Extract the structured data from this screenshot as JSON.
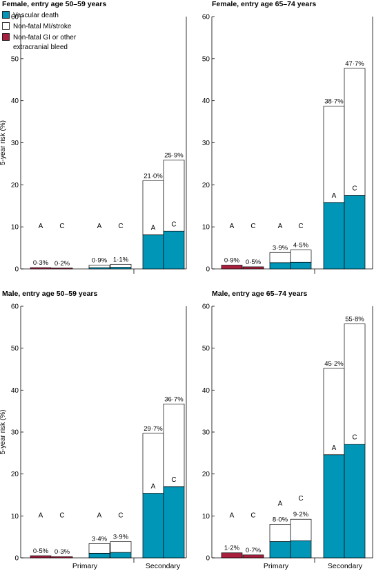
{
  "legend": {
    "vascular": "Vascular death",
    "nonfatal": "Non-fatal MI/stroke",
    "bleed_line1": "Non-fatal GI or other",
    "bleed_line2": "extracranial bleed"
  },
  "group_labels": [
    "Primary",
    "Secondary"
  ],
  "y_axis_label": "5-year risk (%)",
  "colors": {
    "vascular": "#0096b8",
    "nonfatal": "#ffffff",
    "bleed": "#a8203e",
    "axis": "#000000"
  },
  "chart_data": [
    {
      "type": "bar",
      "stacked": true,
      "title": "Female, entry age 50–59 years",
      "ylabel": "5-year risk (%)",
      "ylim": [
        0,
        60
      ],
      "yticks": [
        0,
        10,
        20,
        30,
        40,
        50,
        60
      ],
      "groups": [
        "Primary",
        "Secondary"
      ],
      "bars": [
        {
          "group": "Primary",
          "subgroup": 1,
          "letter": "A",
          "label": "0·3%",
          "bleed": 0.3,
          "vascular": 0,
          "nonfatal": 0
        },
        {
          "group": "Primary",
          "subgroup": 1,
          "letter": "C",
          "label": "0·2%",
          "bleed": 0.2,
          "vascular": 0,
          "nonfatal": 0
        },
        {
          "group": "Primary",
          "subgroup": 2,
          "letter": "A",
          "label": "0·9%",
          "bleed": 0,
          "vascular": 0.3,
          "nonfatal": 0.6
        },
        {
          "group": "Primary",
          "subgroup": 2,
          "letter": "C",
          "label": "1·1%",
          "bleed": 0,
          "vascular": 0.4,
          "nonfatal": 0.7
        },
        {
          "group": "Secondary",
          "subgroup": 3,
          "letter": "A",
          "label": "21·0%",
          "bleed": 0,
          "vascular": 8.1,
          "nonfatal": 12.9
        },
        {
          "group": "Secondary",
          "subgroup": 3,
          "letter": "C",
          "label": "25·9%",
          "bleed": 0,
          "vascular": 9.0,
          "nonfatal": 16.9
        }
      ]
    },
    {
      "type": "bar",
      "stacked": true,
      "title": "Female, entry age 65–74 years",
      "ylabel": "",
      "ylim": [
        0,
        60
      ],
      "yticks": [
        0,
        10,
        20,
        30,
        40,
        50,
        60
      ],
      "groups": [
        "Primary",
        "Secondary"
      ],
      "bars": [
        {
          "group": "Primary",
          "subgroup": 1,
          "letter": "A",
          "label": "0·9%",
          "bleed": 0.9,
          "vascular": 0,
          "nonfatal": 0
        },
        {
          "group": "Primary",
          "subgroup": 1,
          "letter": "C",
          "label": "0·5%",
          "bleed": 0.5,
          "vascular": 0,
          "nonfatal": 0
        },
        {
          "group": "Primary",
          "subgroup": 2,
          "letter": "A",
          "label": "3·9%",
          "bleed": 0,
          "vascular": 1.5,
          "nonfatal": 2.4
        },
        {
          "group": "Primary",
          "subgroup": 2,
          "letter": "C",
          "label": "4·5%",
          "bleed": 0,
          "vascular": 1.6,
          "nonfatal": 2.9
        },
        {
          "group": "Secondary",
          "subgroup": 3,
          "letter": "A",
          "label": "38·7%",
          "bleed": 0,
          "vascular": 15.8,
          "nonfatal": 22.9
        },
        {
          "group": "Secondary",
          "subgroup": 3,
          "letter": "C",
          "label": "47·7%",
          "bleed": 0,
          "vascular": 17.5,
          "nonfatal": 30.2
        }
      ]
    },
    {
      "type": "bar",
      "stacked": true,
      "title": "Male, entry age 50–59 years",
      "ylabel": "5-year risk (%)",
      "ylim": [
        0,
        60
      ],
      "yticks": [
        0,
        10,
        20,
        30,
        40,
        50,
        60
      ],
      "groups": [
        "Primary",
        "Secondary"
      ],
      "bars": [
        {
          "group": "Primary",
          "subgroup": 1,
          "letter": "A",
          "label": "0·5%",
          "bleed": 0.5,
          "vascular": 0,
          "nonfatal": 0
        },
        {
          "group": "Primary",
          "subgroup": 1,
          "letter": "C",
          "label": "0·3%",
          "bleed": 0.3,
          "vascular": 0,
          "nonfatal": 0
        },
        {
          "group": "Primary",
          "subgroup": 2,
          "letter": "A",
          "label": "3·4%",
          "bleed": 0,
          "vascular": 1.1,
          "nonfatal": 2.3
        },
        {
          "group": "Primary",
          "subgroup": 2,
          "letter": "C",
          "label": "3·9%",
          "bleed": 0,
          "vascular": 1.3,
          "nonfatal": 2.6
        },
        {
          "group": "Secondary",
          "subgroup": 3,
          "letter": "A",
          "label": "29·7%",
          "bleed": 0,
          "vascular": 15.4,
          "nonfatal": 14.3
        },
        {
          "group": "Secondary",
          "subgroup": 3,
          "letter": "C",
          "label": "36·7%",
          "bleed": 0,
          "vascular": 17.0,
          "nonfatal": 19.7
        }
      ]
    },
    {
      "type": "bar",
      "stacked": true,
      "title": "Male, entry age 65–74 years",
      "ylabel": "",
      "ylim": [
        0,
        60
      ],
      "yticks": [
        0,
        10,
        20,
        30,
        40,
        50,
        60
      ],
      "groups": [
        "Primary",
        "Secondary"
      ],
      "bars": [
        {
          "group": "Primary",
          "subgroup": 1,
          "letter": "A",
          "label": "1·2%",
          "bleed": 1.2,
          "vascular": 0,
          "nonfatal": 0
        },
        {
          "group": "Primary",
          "subgroup": 1,
          "letter": "C",
          "label": "0·7%",
          "bleed": 0.7,
          "vascular": 0,
          "nonfatal": 0
        },
        {
          "group": "Primary",
          "subgroup": 2,
          "letter": "A",
          "label": "8·0%",
          "bleed": 0,
          "vascular": 3.9,
          "nonfatal": 4.1
        },
        {
          "group": "Primary",
          "subgroup": 2,
          "letter": "C",
          "label": "9·2%",
          "bleed": 0,
          "vascular": 4.1,
          "nonfatal": 5.1
        },
        {
          "group": "Secondary",
          "subgroup": 3,
          "letter": "A",
          "label": "45·2%",
          "bleed": 0,
          "vascular": 24.6,
          "nonfatal": 20.6
        },
        {
          "group": "Secondary",
          "subgroup": 3,
          "letter": "C",
          "label": "55·8%",
          "bleed": 0,
          "vascular": 27.1,
          "nonfatal": 28.7
        }
      ]
    }
  ]
}
